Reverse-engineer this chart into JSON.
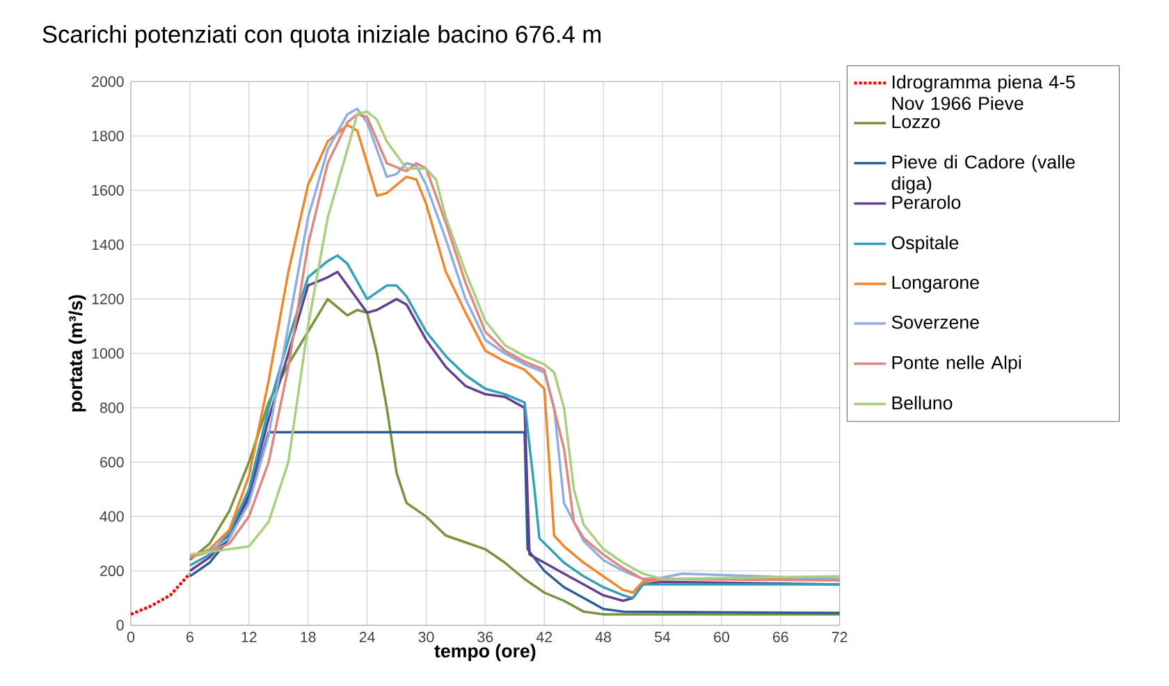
{
  "chart_data": {
    "type": "line",
    "title": "Scarichi potenziati con quota iniziale bacino 676.4 m",
    "xlabel": "tempo (ore)",
    "ylabel": "portata (m³/s)",
    "xlim": [
      0,
      72
    ],
    "xticks": [
      0,
      6,
      12,
      18,
      24,
      30,
      36,
      42,
      48,
      54,
      60,
      66,
      72
    ],
    "ylim": [
      0,
      2000
    ],
    "yticks": [
      0,
      200,
      400,
      600,
      800,
      1000,
      1200,
      1400,
      1600,
      1800,
      2000
    ],
    "grid": true,
    "legend": "right",
    "marker": "none",
    "series": [
      {
        "name": "Idrogramma piena 4-5 Nov 1966 Pieve",
        "color": "#ff0000",
        "line_style": "dotted",
        "x": [
          0,
          2,
          4,
          6
        ],
        "values": [
          40,
          70,
          110,
          190
        ]
      },
      {
        "name": "Lozzo",
        "color": "#77933c",
        "x": [
          6,
          8,
          10,
          12,
          14,
          16,
          18,
          20,
          22,
          23,
          24,
          25,
          26,
          27,
          28,
          30,
          32,
          36,
          38,
          40,
          42,
          44,
          46,
          48,
          72
        ],
        "values": [
          240,
          300,
          420,
          600,
          820,
          960,
          1080,
          1200,
          1140,
          1160,
          1150,
          1000,
          800,
          560,
          450,
          400,
          330,
          280,
          230,
          170,
          120,
          90,
          50,
          40,
          40
        ]
      },
      {
        "name": "Pieve di Cadore (valle diga)",
        "color": "#2e5b9a",
        "x": [
          6,
          8,
          10,
          12,
          14,
          40,
          40.3,
          42,
          44,
          46,
          48,
          50,
          72
        ],
        "values": [
          180,
          230,
          320,
          460,
          710,
          710,
          280,
          200,
          140,
          100,
          60,
          50,
          45
        ]
      },
      {
        "name": "Perarolo",
        "color": "#60408f",
        "x": [
          6,
          8,
          10,
          12,
          14,
          16,
          18,
          20,
          21,
          22,
          24,
          25,
          27,
          28,
          30,
          32,
          34,
          36,
          38,
          40,
          40.5,
          42,
          44,
          46,
          48,
          50,
          51,
          52,
          54,
          72
        ],
        "values": [
          200,
          250,
          330,
          480,
          760,
          1000,
          1250,
          1280,
          1300,
          1250,
          1150,
          1160,
          1200,
          1180,
          1050,
          950,
          880,
          850,
          840,
          800,
          260,
          230,
          190,
          150,
          110,
          90,
          100,
          150,
          160,
          150
        ]
      },
      {
        "name": "Ospitale",
        "color": "#31a0b8",
        "x": [
          6,
          8,
          10,
          12,
          14,
          16,
          18,
          20,
          21,
          22,
          24,
          26,
          27,
          28,
          30,
          32,
          34,
          36,
          38,
          40,
          41,
          41.5,
          44,
          46,
          48,
          50,
          51,
          52,
          54,
          72
        ],
        "values": [
          220,
          260,
          340,
          500,
          800,
          1050,
          1280,
          1340,
          1360,
          1330,
          1200,
          1250,
          1250,
          1210,
          1080,
          990,
          920,
          870,
          850,
          820,
          500,
          320,
          230,
          180,
          140,
          110,
          100,
          150,
          150,
          150
        ]
      },
      {
        "name": "Longarone",
        "color": "#f0862a",
        "x": [
          6,
          8,
          10,
          12,
          14,
          16,
          18,
          20,
          22,
          23,
          24,
          25,
          26,
          27,
          28,
          29,
          30,
          32,
          34,
          36,
          38,
          40,
          42,
          43,
          44,
          46,
          48,
          50,
          51,
          52,
          54,
          72
        ],
        "values": [
          250,
          280,
          350,
          550,
          900,
          1300,
          1620,
          1780,
          1840,
          1820,
          1700,
          1580,
          1590,
          1620,
          1650,
          1640,
          1550,
          1300,
          1150,
          1010,
          970,
          940,
          870,
          330,
          290,
          230,
          180,
          130,
          120,
          160,
          170,
          170
        ]
      },
      {
        "name": "Soverzene",
        "color": "#8eaee0",
        "x": [
          6,
          8,
          10,
          12,
          14,
          16,
          18,
          20,
          22,
          23,
          24,
          25,
          26,
          27,
          28,
          29,
          30,
          32,
          34,
          36,
          38,
          40,
          42,
          43,
          44,
          46,
          48,
          50,
          52,
          54,
          56,
          72
        ],
        "values": [
          250,
          275,
          320,
          450,
          700,
          1100,
          1500,
          1750,
          1880,
          1900,
          1850,
          1750,
          1650,
          1660,
          1700,
          1690,
          1620,
          1420,
          1200,
          1050,
          1000,
          960,
          930,
          800,
          450,
          310,
          240,
          200,
          170,
          175,
          190,
          170
        ]
      },
      {
        "name": "Ponte nelle Alpi",
        "color": "#e0867e",
        "x": [
          6,
          8,
          10,
          12,
          14,
          16,
          18,
          20,
          22,
          23,
          24,
          26,
          28,
          29,
          30,
          32,
          34,
          36,
          38,
          40,
          42,
          44,
          45,
          46,
          48,
          50,
          52,
          54,
          72
        ],
        "values": [
          250,
          270,
          300,
          400,
          600,
          950,
          1400,
          1700,
          1850,
          1880,
          1870,
          1700,
          1670,
          1700,
          1680,
          1480,
          1260,
          1080,
          1010,
          970,
          940,
          650,
          380,
          320,
          260,
          210,
          170,
          170,
          165
        ]
      },
      {
        "name": "Belluno",
        "color": "#a9cf7e",
        "x": [
          6,
          8,
          10,
          12,
          14,
          16,
          18,
          20,
          22,
          23,
          24,
          25,
          26,
          28,
          30,
          31,
          32,
          34,
          36,
          38,
          40,
          42,
          43,
          44,
          45,
          46,
          48,
          50,
          52,
          54,
          72
        ],
        "values": [
          260,
          270,
          280,
          290,
          380,
          600,
          1100,
          1500,
          1750,
          1880,
          1890,
          1860,
          1780,
          1680,
          1680,
          1640,
          1500,
          1300,
          1120,
          1030,
          990,
          960,
          930,
          800,
          500,
          370,
          280,
          230,
          190,
          170,
          180
        ]
      }
    ]
  }
}
